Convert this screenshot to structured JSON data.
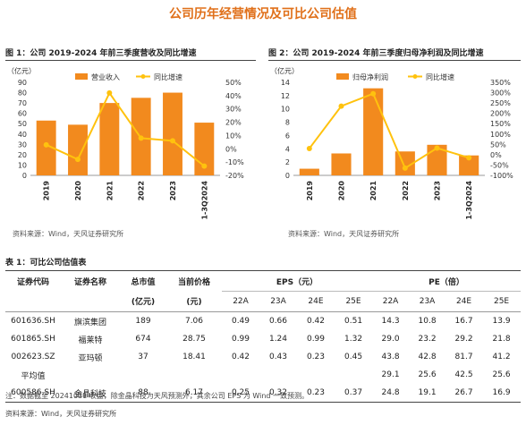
{
  "main_title": "公司历年经营情况及可比公司估值",
  "fig1": {
    "title": "图 1：公司 2019-2024 年前三季度营收及同比增速",
    "unit": "（亿元）",
    "legend_bar": "营业收入",
    "legend_line": "同比增速",
    "source": "资料来源：Wind，天风证券研究所"
  },
  "fig2": {
    "title": "图 2：公司 2019-2024 年前三季度归母净利润及同比增速",
    "unit": "（亿元）",
    "legend_bar": "归母净利润",
    "legend_line": "同比增速",
    "source": "资料来源：Wind，天风证券研究所"
  },
  "chart_data": [
    {
      "type": "bar",
      "categories": [
        "2019",
        "2020",
        "2021",
        "2022",
        "2023",
        "1-3Q2024"
      ],
      "series": [
        {
          "name": "营业收入",
          "values": [
            53,
            49,
            70,
            75,
            80,
            51
          ],
          "axis": "left"
        },
        {
          "name": "同比增速",
          "type": "line",
          "values": [
            0.03,
            -0.08,
            0.42,
            0.08,
            0.06,
            -0.13
          ],
          "axis": "right"
        }
      ],
      "ylim_left": [
        0,
        90
      ],
      "yticks_left": [
        0,
        10,
        20,
        30,
        40,
        50,
        60,
        70,
        80,
        90
      ],
      "ylim_right": [
        -0.2,
        0.5
      ],
      "yticks_right": [
        "-20%",
        "-10%",
        "0%",
        "10%",
        "20%",
        "30%",
        "40%",
        "50%"
      ],
      "colors": {
        "bar": "#f28a1e",
        "line": "#ffc20e"
      },
      "legend": "top"
    },
    {
      "type": "bar",
      "categories": [
        "2019",
        "2020",
        "2021",
        "2022",
        "2023",
        "1-3Q2024"
      ],
      "series": [
        {
          "name": "归母净利润",
          "values": [
            1.0,
            3.3,
            13.1,
            3.6,
            4.6,
            3.0
          ],
          "axis": "left"
        },
        {
          "name": "同比增速",
          "type": "line",
          "values": [
            0.3,
            2.35,
            2.95,
            -0.65,
            0.32,
            -0.15
          ],
          "axis": "right"
        }
      ],
      "ylim_left": [
        0,
        14
      ],
      "yticks_left": [
        0,
        2,
        4,
        6,
        8,
        10,
        12,
        14
      ],
      "ylim_right": [
        -1.0,
        3.5
      ],
      "yticks_right": [
        "-100%",
        "-50%",
        "0%",
        "50%",
        "100%",
        "150%",
        "200%",
        "250%",
        "300%",
        "350%"
      ],
      "colors": {
        "bar": "#f28a1e",
        "line": "#ffc20e"
      },
      "legend": "top"
    }
  ],
  "table": {
    "caption": "表 1：可比公司估值表",
    "headers": {
      "code": "证券代码",
      "name": "证券名称",
      "mcap": "总市值",
      "mcap_unit": "(亿元)",
      "price": "当前价格",
      "price_unit": "(元)",
      "eps": "EPS（元）",
      "pe": "PE（倍）",
      "years": [
        "22A",
        "23A",
        "24E",
        "25E"
      ]
    },
    "rows": [
      {
        "code": "601636.SH",
        "name": "旗滨集团",
        "mcap": "189",
        "price": "7.06",
        "eps": [
          "0.49",
          "0.66",
          "0.42",
          "0.51"
        ],
        "pe": [
          "14.3",
          "10.8",
          "16.7",
          "13.9"
        ]
      },
      {
        "code": "601865.SH",
        "name": "福莱特",
        "mcap": "674",
        "price": "28.75",
        "eps": [
          "0.99",
          "1.24",
          "0.99",
          "1.32"
        ],
        "pe": [
          "29.0",
          "23.2",
          "29.2",
          "21.8"
        ]
      },
      {
        "code": "002623.SZ",
        "name": "亚玛顿",
        "mcap": "37",
        "price": "18.41",
        "eps": [
          "0.42",
          "0.43",
          "0.23",
          "0.45"
        ],
        "pe": [
          "43.8",
          "42.8",
          "81.7",
          "41.2"
        ]
      }
    ],
    "average": {
      "label": "平均值",
      "pe": [
        "29.1",
        "25.6",
        "42.5",
        "25.6"
      ]
    },
    "target": {
      "code": "600586.SH",
      "name": "金晶科技",
      "mcap": "88",
      "price": "6.17",
      "eps": [
        "0.25",
        "0.32",
        "0.23",
        "0.37"
      ],
      "pe": [
        "24.8",
        "19.1",
        "26.7",
        "16.9"
      ]
    },
    "note": "注：数据截至 20241031 收盘，除金晶科技为天风预测外，其余公司 EPS 为 Wind 一致预测。",
    "source": "资料来源：Wind，天风证券研究所"
  }
}
